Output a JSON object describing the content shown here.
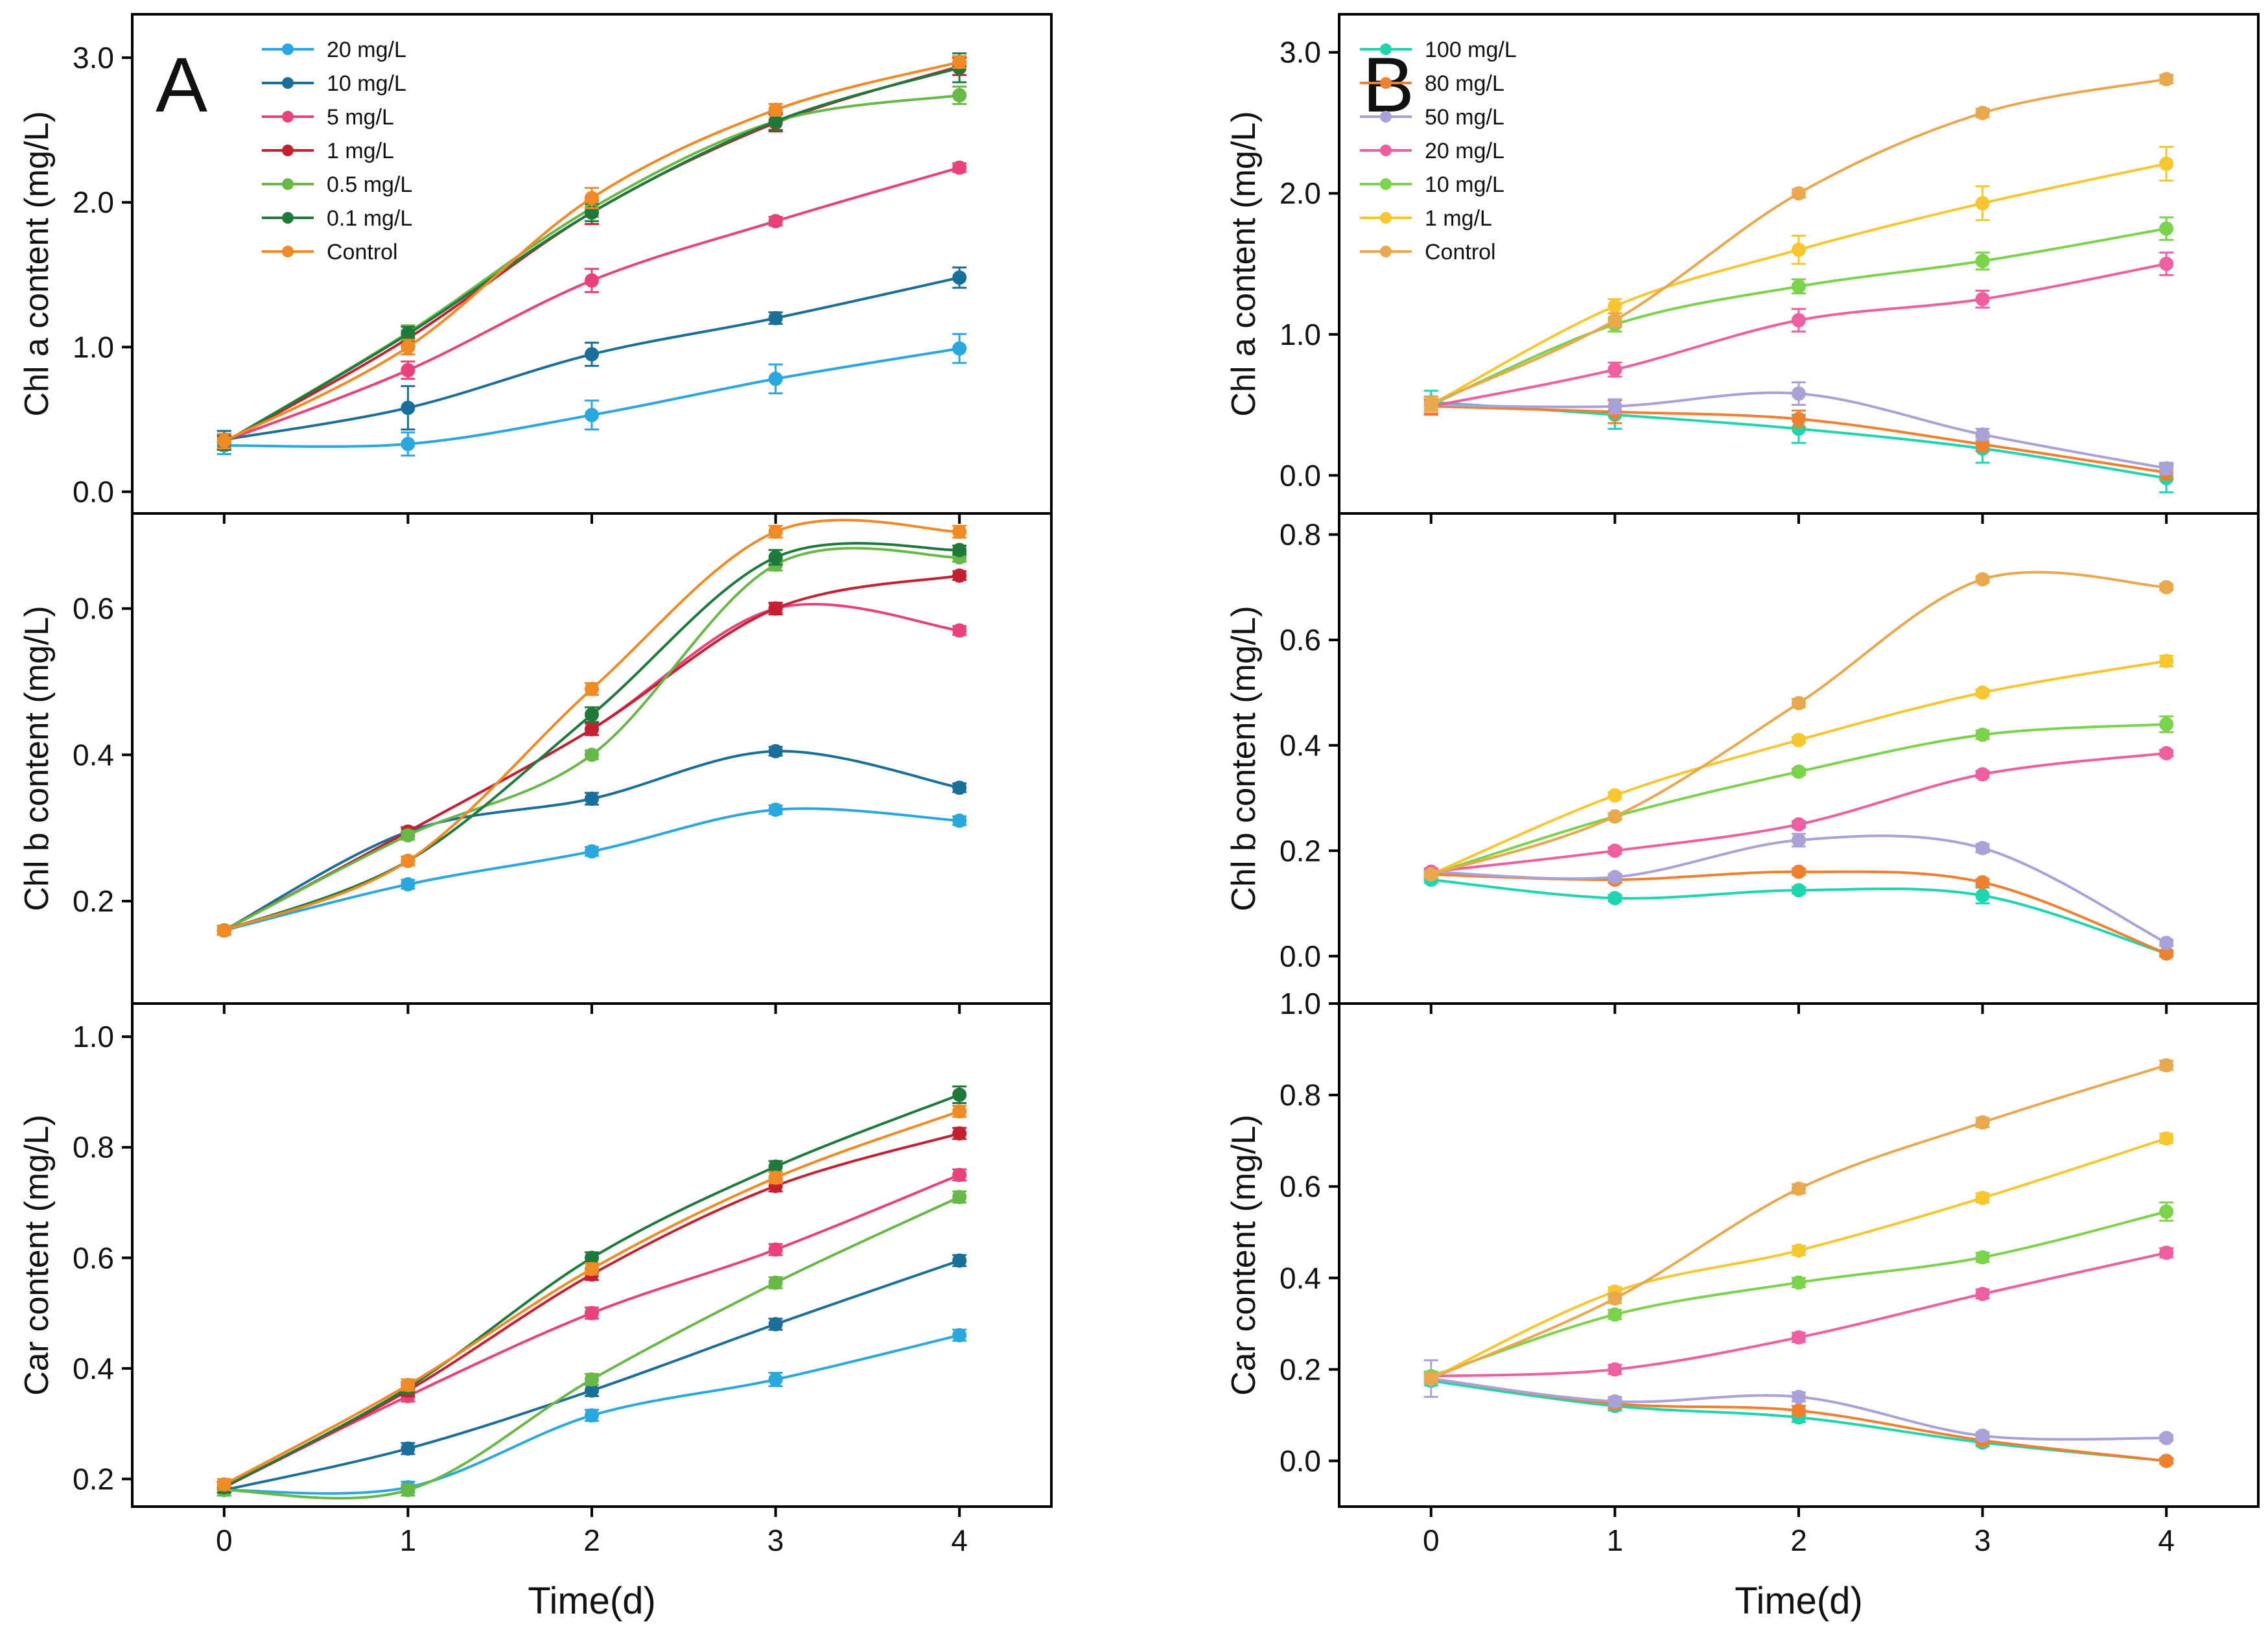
{
  "chart_data": [
    {
      "panel": "A",
      "type": "line",
      "row": 0,
      "letter": "A",
      "ylabel": "Chl a content (mg/L)",
      "xlabel": "",
      "x": [
        0,
        1,
        2,
        3,
        4
      ],
      "xlim": [
        -0.5,
        4.5
      ],
      "ylim": [
        -0.15,
        3.3
      ],
      "yticks": [
        0.0,
        1.0,
        2.0,
        3.0
      ],
      "ytick_labels": [
        "0.0",
        "1.0",
        "2.0",
        "3.0"
      ],
      "legend": true,
      "legend_position": "top-left",
      "series": [
        {
          "name": "20 mg/L",
          "color": "#29a8e0",
          "values": [
            0.32,
            0.33,
            0.53,
            0.78,
            0.99
          ],
          "err": [
            0.06,
            0.08,
            0.1,
            0.1,
            0.1
          ]
        },
        {
          "name": "10 mg/L",
          "color": "#1a6e9a",
          "values": [
            0.36,
            0.58,
            0.95,
            1.2,
            1.48
          ],
          "err": [
            0.06,
            0.15,
            0.08,
            0.04,
            0.07
          ]
        },
        {
          "name": "5 mg/L",
          "color": "#e9417a",
          "values": [
            0.35,
            0.84,
            1.46,
            1.87,
            2.24
          ],
          "err": [
            0.05,
            0.06,
            0.08,
            0.03,
            0.03
          ]
        },
        {
          "name": "1 mg/L",
          "color": "#c52031",
          "values": [
            0.34,
            1.06,
            1.93,
            2.55,
            2.94
          ],
          "err": [
            0.05,
            0.05,
            0.08,
            0.06,
            0.06
          ]
        },
        {
          "name": "0.5 mg/L",
          "color": "#67b846",
          "values": [
            0.34,
            1.1,
            1.96,
            2.56,
            2.74
          ],
          "err": [
            0.05,
            0.05,
            0.06,
            0.06,
            0.06
          ]
        },
        {
          "name": "0.1 mg/L",
          "color": "#1e7a3a",
          "values": [
            0.34,
            1.09,
            1.93,
            2.56,
            2.93
          ],
          "err": [
            0.05,
            0.05,
            0.06,
            0.06,
            0.1
          ]
        },
        {
          "name": "Control",
          "color": "#f08a24",
          "values": [
            0.35,
            1.0,
            2.03,
            2.64,
            2.97
          ],
          "err": [
            0.05,
            0.05,
            0.07,
            0.04,
            0.04
          ]
        }
      ]
    },
    {
      "panel": "A",
      "type": "line",
      "row": 1,
      "letter": "",
      "ylabel": "Chl b content (mg/L)",
      "xlabel": "",
      "x": [
        0,
        1,
        2,
        3,
        4
      ],
      "xlim": [
        -0.5,
        4.5
      ],
      "ylim": [
        0.06,
        0.73
      ],
      "yticks": [
        0.2,
        0.4,
        0.6
      ],
      "ytick_labels": [
        "0.2",
        "0.4",
        "0.6"
      ],
      "legend": false,
      "series": [
        {
          "name": "20 mg/L",
          "color": "#29a8e0",
          "values": [
            0.16,
            0.223,
            0.268,
            0.325,
            0.31
          ],
          "err": [
            0.006,
            0.006,
            0.006,
            0.006,
            0.006
          ]
        },
        {
          "name": "10 mg/L",
          "color": "#1a6e9a",
          "values": [
            0.16,
            0.295,
            0.34,
            0.405,
            0.355
          ],
          "err": [
            0.006,
            0.006,
            0.008,
            0.006,
            0.006
          ]
        },
        {
          "name": "5 mg/L",
          "color": "#e9417a",
          "values": [
            0.16,
            0.295,
            0.435,
            0.6,
            0.57
          ],
          "err": [
            0.006,
            0.006,
            0.008,
            0.006,
            0.006
          ]
        },
        {
          "name": "1 mg/L",
          "color": "#c52031",
          "values": [
            0.16,
            0.295,
            0.435,
            0.6,
            0.645
          ],
          "err": [
            0.006,
            0.006,
            0.008,
            0.008,
            0.006
          ]
        },
        {
          "name": "0.5 mg/L",
          "color": "#67b846",
          "values": [
            0.16,
            0.29,
            0.4,
            0.66,
            0.67
          ],
          "err": [
            0.006,
            0.006,
            0.006,
            0.008,
            0.006
          ]
        },
        {
          "name": "0.1 mg/L",
          "color": "#1e7a3a",
          "values": [
            0.16,
            0.255,
            0.455,
            0.67,
            0.68
          ],
          "err": [
            0.006,
            0.006,
            0.01,
            0.01,
            0.006
          ]
        },
        {
          "name": "Control",
          "color": "#f08a24",
          "values": [
            0.16,
            0.255,
            0.49,
            0.705,
            0.705
          ],
          "err": [
            0.006,
            0.006,
            0.008,
            0.008,
            0.008
          ]
        }
      ]
    },
    {
      "panel": "A",
      "type": "line",
      "row": 2,
      "letter": "",
      "ylabel": "Car content (mg/L)",
      "xlabel": "Time(d)",
      "x": [
        0,
        1,
        2,
        3,
        4
      ],
      "xlim": [
        -0.5,
        4.5
      ],
      "ylim": [
        0.15,
        1.06
      ],
      "yticks": [
        0.2,
        0.4,
        0.6,
        0.8,
        1.0
      ],
      "ytick_labels": [
        "0.2",
        "0.4",
        "0.6",
        "0.8",
        "1.0"
      ],
      "xticks": [
        0,
        1,
        2,
        3,
        4
      ],
      "xtick_labels": [
        "0",
        "1",
        "2",
        "3",
        "4"
      ],
      "legend": false,
      "series": [
        {
          "name": "20 mg/L",
          "color": "#29a8e0",
          "values": [
            0.18,
            0.185,
            0.315,
            0.38,
            0.46
          ],
          "err": [
            0.01,
            0.01,
            0.01,
            0.012,
            0.01
          ]
        },
        {
          "name": "10 mg/L",
          "color": "#1a6e9a",
          "values": [
            0.18,
            0.255,
            0.36,
            0.48,
            0.595
          ],
          "err": [
            0.01,
            0.01,
            0.01,
            0.01,
            0.01
          ]
        },
        {
          "name": "5 mg/L",
          "color": "#e9417a",
          "values": [
            0.185,
            0.35,
            0.5,
            0.615,
            0.75
          ],
          "err": [
            0.01,
            0.01,
            0.01,
            0.01,
            0.01
          ]
        },
        {
          "name": "1 mg/L",
          "color": "#c52031",
          "values": [
            0.185,
            0.36,
            0.57,
            0.73,
            0.825
          ],
          "err": [
            0.01,
            0.01,
            0.01,
            0.01,
            0.01
          ]
        },
        {
          "name": "0.5 mg/L",
          "color": "#67b846",
          "values": [
            0.18,
            0.18,
            0.38,
            0.555,
            0.71
          ],
          "err": [
            0.01,
            0.01,
            0.01,
            0.01,
            0.01
          ]
        },
        {
          "name": "0.1 mg/L",
          "color": "#1e7a3a",
          "values": [
            0.185,
            0.365,
            0.6,
            0.765,
            0.895
          ],
          "err": [
            0.01,
            0.01,
            0.01,
            0.01,
            0.015
          ]
        },
        {
          "name": "Control",
          "color": "#f08a24",
          "values": [
            0.19,
            0.37,
            0.58,
            0.745,
            0.865
          ],
          "err": [
            0.01,
            0.01,
            0.01,
            0.01,
            0.01
          ]
        }
      ]
    },
    {
      "panel": "B",
      "type": "line",
      "row": 0,
      "letter": "B",
      "ylabel": "Chl a content (mg/L)",
      "xlabel": "",
      "x": [
        0,
        1,
        2,
        3,
        4
      ],
      "xlim": [
        -0.5,
        4.5
      ],
      "ylim": [
        -0.27,
        3.27
      ],
      "yticks": [
        0.0,
        1.0,
        2.0,
        3.0
      ],
      "ytick_labels": [
        "0.0",
        "1.0",
        "2.0",
        "3.0"
      ],
      "legend": true,
      "legend_position": "top-left",
      "series": [
        {
          "name": "100 mg/L",
          "color": "#1dd6b0",
          "values": [
            0.52,
            0.43,
            0.33,
            0.19,
            -0.02
          ],
          "err": [
            0.08,
            0.1,
            0.1,
            0.1,
            0.1
          ]
        },
        {
          "name": "80 mg/L",
          "color": "#ef8030",
          "values": [
            0.49,
            0.45,
            0.4,
            0.22,
            0.02
          ],
          "err": [
            0.06,
            0.08,
            0.06,
            0.05,
            0.05
          ]
        },
        {
          "name": "50 mg/L",
          "color": "#a8a2d8",
          "values": [
            0.5,
            0.49,
            0.58,
            0.29,
            0.05
          ],
          "err": [
            0.05,
            0.05,
            0.08,
            0.04,
            0.04
          ]
        },
        {
          "name": "20 mg/L",
          "color": "#ee5fa0",
          "values": [
            0.49,
            0.75,
            1.1,
            1.25,
            1.5
          ],
          "err": [
            0.05,
            0.05,
            0.08,
            0.06,
            0.08
          ]
        },
        {
          "name": "10 mg/L",
          "color": "#7ad34a",
          "values": [
            0.5,
            1.07,
            1.34,
            1.52,
            1.75
          ],
          "err": [
            0.05,
            0.05,
            0.05,
            0.06,
            0.08
          ]
        },
        {
          "name": "1 mg/L",
          "color": "#f8c62f",
          "values": [
            0.5,
            1.2,
            1.6,
            1.93,
            2.21
          ],
          "err": [
            0.05,
            0.05,
            0.1,
            0.12,
            0.12
          ]
        },
        {
          "name": "Control",
          "color": "#e9a84d",
          "values": [
            0.51,
            1.1,
            2.0,
            2.57,
            2.81
          ],
          "err": [
            0.05,
            0.05,
            0.03,
            0.03,
            0.03
          ]
        }
      ]
    },
    {
      "panel": "B",
      "type": "line",
      "row": 1,
      "letter": "",
      "ylabel": "Chl b  content (mg/L)",
      "xlabel": "",
      "x": [
        0,
        1,
        2,
        3,
        4
      ],
      "xlim": [
        -0.5,
        4.5
      ],
      "ylim": [
        -0.09,
        0.84
      ],
      "yticks": [
        0.0,
        0.2,
        0.4,
        0.6,
        0.8
      ],
      "ytick_labels": [
        "0.0",
        "0.2",
        "0.4",
        "0.6",
        "0.8"
      ],
      "legend": false,
      "series": [
        {
          "name": "100 mg/L",
          "color": "#1dd6b0",
          "values": [
            0.145,
            0.11,
            0.125,
            0.115,
            0.005
          ],
          "err": [
            0.006,
            0.006,
            0.006,
            0.015,
            0.006
          ]
        },
        {
          "name": "80 mg/L",
          "color": "#ef8030",
          "values": [
            0.155,
            0.145,
            0.16,
            0.14,
            0.005
          ],
          "err": [
            0.006,
            0.006,
            0.006,
            0.006,
            0.006
          ]
        },
        {
          "name": "50 mg/L",
          "color": "#a8a2d8",
          "values": [
            0.16,
            0.15,
            0.22,
            0.205,
            0.025
          ],
          "err": [
            0.006,
            0.006,
            0.012,
            0.008,
            0.006
          ]
        },
        {
          "name": "20 mg/L",
          "color": "#ee5fa0",
          "values": [
            0.16,
            0.2,
            0.25,
            0.345,
            0.385
          ],
          "err": [
            0.006,
            0.006,
            0.006,
            0.006,
            0.006
          ]
        },
        {
          "name": "10 mg/L",
          "color": "#7ad34a",
          "values": [
            0.155,
            0.265,
            0.35,
            0.42,
            0.44
          ],
          "err": [
            0.006,
            0.006,
            0.006,
            0.008,
            0.015
          ]
        },
        {
          "name": "1 mg/L",
          "color": "#f8c62f",
          "values": [
            0.155,
            0.305,
            0.41,
            0.5,
            0.56
          ],
          "err": [
            0.006,
            0.006,
            0.006,
            0.006,
            0.01
          ]
        },
        {
          "name": "Control",
          "color": "#e9a84d",
          "values": [
            0.155,
            0.265,
            0.48,
            0.715,
            0.7
          ],
          "err": [
            0.006,
            0.006,
            0.008,
            0.006,
            0.006
          ]
        }
      ]
    },
    {
      "panel": "B",
      "type": "line",
      "row": 2,
      "letter": "",
      "ylabel": "Car content (mg/L)",
      "xlabel": "Time(d)",
      "x": [
        0,
        1,
        2,
        3,
        4
      ],
      "xlim": [
        -0.5,
        4.5
      ],
      "ylim": [
        -0.1,
        1.0
      ],
      "yticks": [
        0.0,
        0.2,
        0.4,
        0.6,
        0.8,
        1.0
      ],
      "ytick_labels": [
        "0.0",
        "0.2",
        "0.4",
        "0.6",
        "0.8",
        "1.0"
      ],
      "xticks": [
        0,
        1,
        2,
        3,
        4
      ],
      "xtick_labels": [
        "0",
        "1",
        "2",
        "3",
        "4"
      ],
      "legend": false,
      "series": [
        {
          "name": "100 mg/L",
          "color": "#1dd6b0",
          "values": [
            0.175,
            0.12,
            0.095,
            0.04,
            0.0
          ],
          "err": [
            0.01,
            0.01,
            0.01,
            0.008,
            0.006
          ]
        },
        {
          "name": "80 mg/L",
          "color": "#ef8030",
          "values": [
            0.18,
            0.125,
            0.11,
            0.045,
            0.0
          ],
          "err": [
            0.01,
            0.01,
            0.01,
            0.008,
            0.006
          ]
        },
        {
          "name": "50 mg/L",
          "color": "#a8a2d8",
          "values": [
            0.18,
            0.13,
            0.14,
            0.055,
            0.05
          ],
          "err": [
            0.04,
            0.01,
            0.01,
            0.008,
            0.006
          ]
        },
        {
          "name": "20 mg/L",
          "color": "#ee5fa0",
          "values": [
            0.185,
            0.2,
            0.27,
            0.365,
            0.455
          ],
          "err": [
            0.01,
            0.01,
            0.01,
            0.01,
            0.01
          ]
        },
        {
          "name": "10 mg/L",
          "color": "#7ad34a",
          "values": [
            0.185,
            0.32,
            0.39,
            0.445,
            0.545
          ],
          "err": [
            0.01,
            0.01,
            0.01,
            0.01,
            0.02
          ]
        },
        {
          "name": "1 mg/L",
          "color": "#f8c62f",
          "values": [
            0.18,
            0.37,
            0.46,
            0.575,
            0.705
          ],
          "err": [
            0.01,
            0.01,
            0.01,
            0.01,
            0.01
          ]
        },
        {
          "name": "Control",
          "color": "#e9a84d",
          "values": [
            0.18,
            0.355,
            0.595,
            0.74,
            0.865
          ],
          "err": [
            0.01,
            0.01,
            0.01,
            0.01,
            0.01
          ]
        }
      ]
    }
  ]
}
